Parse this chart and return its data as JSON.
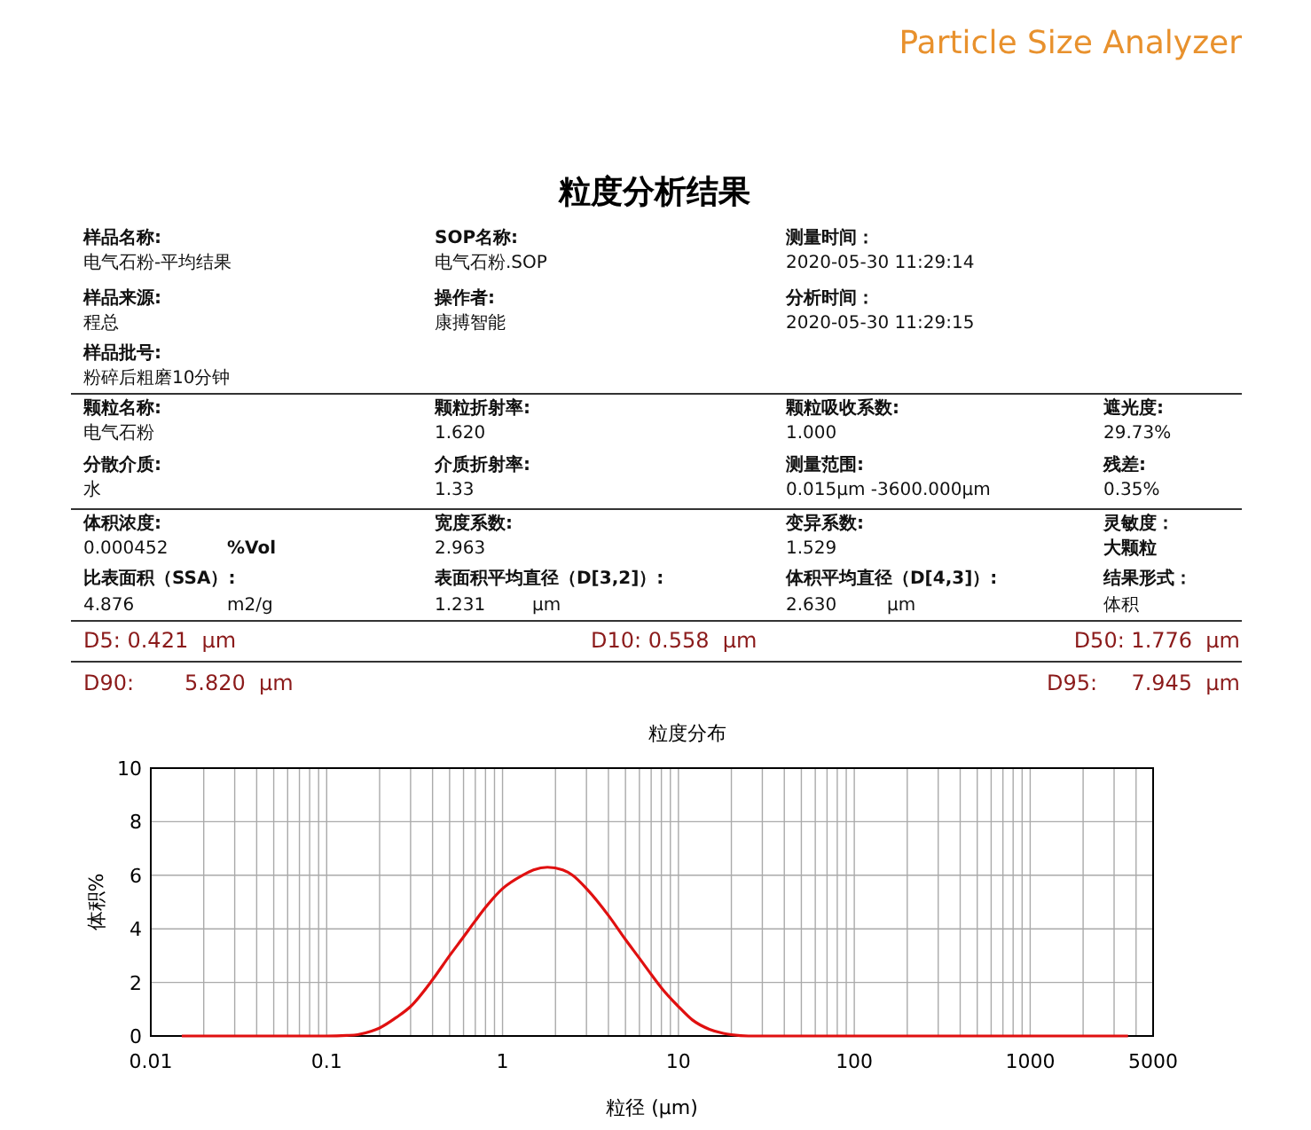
{
  "chart_data": [
    {
      "type": "other",
      "title": "粒度分析结果",
      "annotations": [
        "Particle Size Analyzer",
        "样品名称:",
        "电气石粉-平均结果",
        "SOP名称:",
        "电气石粉.SOP",
        "测量时间：",
        "2020-05-30 11:29:14",
        "样品来源:",
        "程总",
        "操作者:",
        "康搏智能",
        "分析时间：",
        "2020-05-30 11:29:15",
        "样品批号:",
        "粉碎后粗磨10分钟",
        "颗粒名称:",
        "电气石粉",
        "颗粒折射率:",
        "1.620",
        "颗粒吸收系数:",
        "1.000",
        "遮光度:",
        "29.73%",
        "分散介质:",
        "水",
        "介质折射率:",
        "1.33",
        "测量范围:",
        "0.015μm -3600.000μm",
        "残差:",
        "0.35%",
        "体积浓度:",
        "0.000452",
        "%Vol",
        "宽度系数:",
        "2.963",
        "变异系数:",
        "1.529",
        "灵敏度：",
        "大颗粒",
        "比表面积（SSA）:",
        "4.876",
        "m2/g",
        "表面积平均直径（D[3,2]）:",
        "1.231",
        "μm",
        "体积平均直径（D[4,3]）:",
        "2.630",
        "μm",
        "结果形式：",
        "体积",
        "D5: 0.421  μm",
        "D10: 0.558  μm",
        "D50: 1.776  μm",
        "D90:",
        "5.820  μm",
        "D95:",
        "7.945  μm"
      ]
    },
    {
      "type": "line",
      "title": "粒度分布",
      "xlabel": "粒径 (μm)",
      "ylabel": "体积%",
      "log": "x",
      "grid": true,
      "marker": "none",
      "line_style": "solid",
      "xlim": [
        0.01,
        5000
      ],
      "ylim": [
        0,
        10
      ],
      "yticks": [
        0,
        2,
        4,
        6,
        8,
        10
      ],
      "xticks": [
        0.01,
        {
          "value": 0.02,
          "label": null
        },
        {
          "value": 0.03,
          "label": null
        },
        {
          "value": 0.04,
          "label": null
        },
        {
          "value": 0.05,
          "label": null
        },
        {
          "value": 0.06,
          "label": null
        },
        {
          "value": 0.07,
          "label": null
        },
        {
          "value": 0.08,
          "label": null
        },
        {
          "value": 0.09,
          "label": null
        },
        0.1,
        {
          "value": 0.2,
          "label": null
        },
        {
          "value": 0.3,
          "label": null
        },
        {
          "value": 0.4,
          "label": null
        },
        {
          "value": 0.5,
          "label": null
        },
        {
          "value": 0.6,
          "label": null
        },
        {
          "value": 0.7,
          "label": null
        },
        {
          "value": 0.8,
          "label": null
        },
        {
          "value": 0.9,
          "label": null
        },
        1,
        {
          "value": 2,
          "label": null
        },
        {
          "value": 3,
          "label": null
        },
        {
          "value": 4,
          "label": null
        },
        {
          "value": 5,
          "label": null
        },
        {
          "value": 6,
          "label": null
        },
        {
          "value": 7,
          "label": null
        },
        {
          "value": 8,
          "label": null
        },
        {
          "value": 9,
          "label": null
        },
        10,
        {
          "value": 20,
          "label": null
        },
        {
          "value": 30,
          "label": null
        },
        {
          "value": 40,
          "label": null
        },
        {
          "value": 50,
          "label": null
        },
        {
          "value": 60,
          "label": null
        },
        {
          "value": 70,
          "label": null
        },
        {
          "value": 80,
          "label": null
        },
        {
          "value": 90,
          "label": null
        },
        100,
        {
          "value": 200,
          "label": null
        },
        {
          "value": 300,
          "label": null
        },
        {
          "value": 400,
          "label": null
        },
        {
          "value": 500,
          "label": null
        },
        {
          "value": 600,
          "label": null
        },
        {
          "value": 700,
          "label": null
        },
        {
          "value": 800,
          "label": null
        },
        {
          "value": 900,
          "label": null
        },
        1000,
        {
          "value": 2000,
          "label": null
        },
        {
          "value": 3000,
          "label": null
        },
        {
          "value": 4000,
          "label": null
        },
        5000
      ],
      "series": [
        {
          "color": "#e01010",
          "x": [
            0.015,
            0.05,
            0.1,
            0.13,
            0.15,
            0.18,
            0.2,
            0.25,
            0.3,
            0.4,
            0.5,
            0.6,
            0.7,
            0.8,
            1,
            1.3,
            1.5,
            1.8,
            2.2,
            2.5,
            3,
            4,
            5,
            6,
            7,
            8,
            10,
            12,
            15,
            18,
            20,
            25,
            40,
            100,
            1000,
            3600
          ],
          "values": [
            0,
            0,
            0,
            0.02,
            0.05,
            0.18,
            0.3,
            0.7,
            1.1,
            2.1,
            3.0,
            3.7,
            4.3,
            4.8,
            5.5,
            6.0,
            6.2,
            6.3,
            6.2,
            6.0,
            5.5,
            4.5,
            3.6,
            2.9,
            2.3,
            1.8,
            1.1,
            0.6,
            0.25,
            0.1,
            0.05,
            0,
            0,
            0,
            0,
            0
          ]
        }
      ]
    }
  ]
}
